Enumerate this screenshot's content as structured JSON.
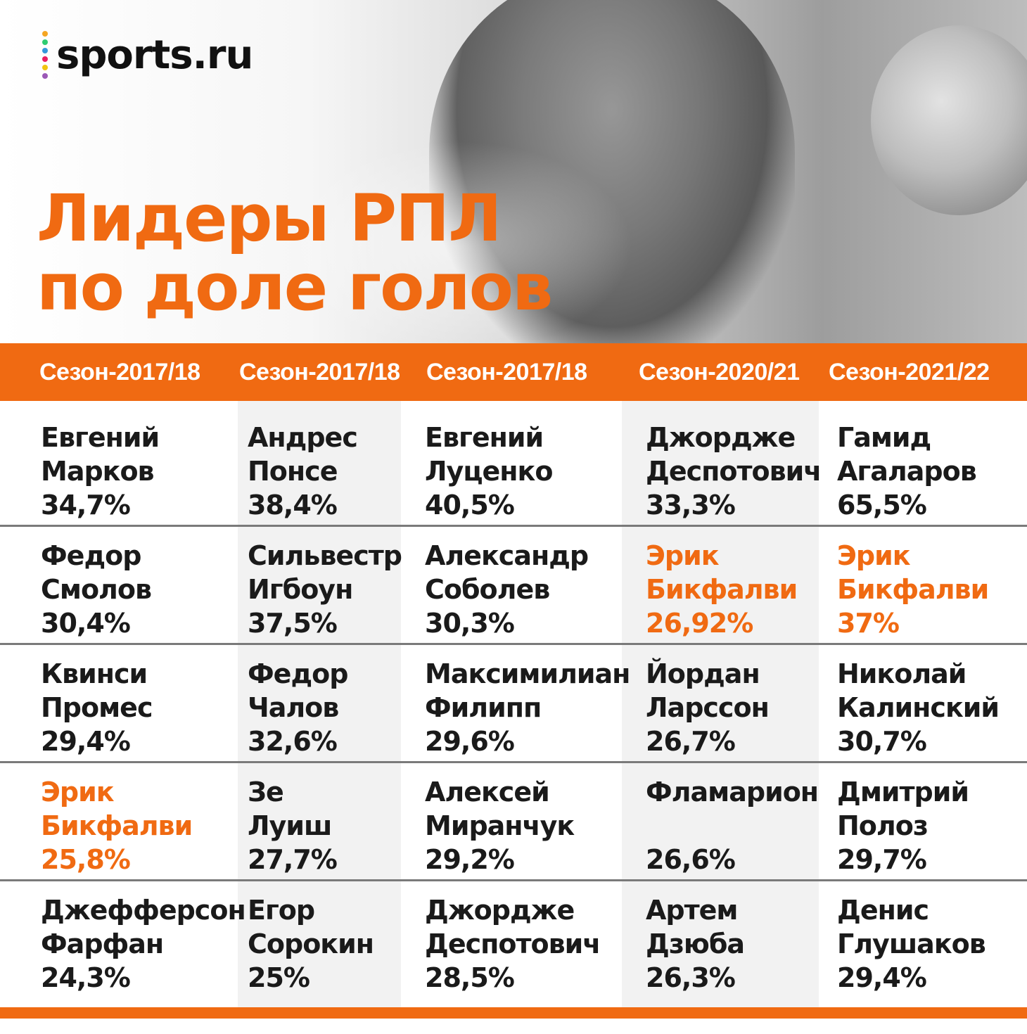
{
  "logo": {
    "text": "sports.ru",
    "dot_colors": [
      "#f5a623",
      "#2ecc71",
      "#3498db",
      "#e91e63",
      "#f1c40f",
      "#9b59b6"
    ]
  },
  "title": {
    "line1": "Лидеры РПЛ",
    "line2": "по доле голов"
  },
  "colors": {
    "accent": "#f06a12",
    "text": "#1a1a1a",
    "divider": "#7a7a7a",
    "column_shade": "#f2f2f2"
  },
  "seasons": [
    "Сезон-2017/18",
    "Сезон-2017/18",
    "Сезон-2017/18",
    "Сезон-2020/21",
    "Сезон-2021/22"
  ],
  "rows": [
    [
      {
        "first": "Евгений",
        "last": "Марков",
        "pct": "34,7%",
        "hl": false
      },
      {
        "first": "Андрес",
        "last": "Понсе",
        "pct": "38,4%",
        "hl": false
      },
      {
        "first": "Евгений",
        "last": "Луценко",
        "pct": "40,5%",
        "hl": false
      },
      {
        "first": "Джордже",
        "last": "Деспотович",
        "pct": "33,3%",
        "hl": false
      },
      {
        "first": "Гамид",
        "last": "Агаларов",
        "pct": "65,5%",
        "hl": false
      }
    ],
    [
      {
        "first": "Федор",
        "last": "Смолов",
        "pct": "30,4%",
        "hl": false
      },
      {
        "first": "Сильвестр",
        "last": "Игбоун",
        "pct": "37,5%",
        "hl": false
      },
      {
        "first": "Александр",
        "last": "Соболев",
        "pct": "30,3%",
        "hl": false
      },
      {
        "first": "Эрик",
        "last": "Бикфалви",
        "pct": "26,92%",
        "hl": true
      },
      {
        "first": "Эрик",
        "last": "Бикфалви",
        "pct": "37%",
        "hl": true
      }
    ],
    [
      {
        "first": "Квинси",
        "last": "Промес",
        "pct": "29,4%",
        "hl": false
      },
      {
        "first": "Федор",
        "last": "Чалов",
        "pct": "32,6%",
        "hl": false
      },
      {
        "first": "Максимилиан",
        "last": "Филипп",
        "pct": "29,6%",
        "hl": false
      },
      {
        "first": "Йордан",
        "last": "Ларссон",
        "pct": "26,7%",
        "hl": false
      },
      {
        "first": "Николай",
        "last": "Калинский",
        "pct": "30,7%",
        "hl": false
      }
    ],
    [
      {
        "first": "Эрик",
        "last": "Бикфалви",
        "pct": "25,8%",
        "hl": true
      },
      {
        "first": "Зе",
        "last": "Луиш",
        "pct": "27,7%",
        "hl": false
      },
      {
        "first": "Алексей",
        "last": "Миранчук",
        "pct": "29,2%",
        "hl": false
      },
      {
        "first": "Фламарион",
        "last": "",
        "pct": "26,6%",
        "hl": false
      },
      {
        "first": "Дмитрий",
        "last": "Полоз",
        "pct": "29,7%",
        "hl": false
      }
    ],
    [
      {
        "first": "Джефферсон",
        "last": "Фарфан",
        "pct": "24,3%",
        "hl": false
      },
      {
        "first": "Егор",
        "last": "Сорокин",
        "pct": "25%",
        "hl": false
      },
      {
        "first": "Джордже",
        "last": "Деспотович",
        "pct": "28,5%",
        "hl": false
      },
      {
        "first": "Артем",
        "last": "Дзюба",
        "pct": "26,3%",
        "hl": false
      },
      {
        "first": "Денис",
        "last": "Глушаков",
        "pct": "29,4%",
        "hl": false
      }
    ]
  ]
}
